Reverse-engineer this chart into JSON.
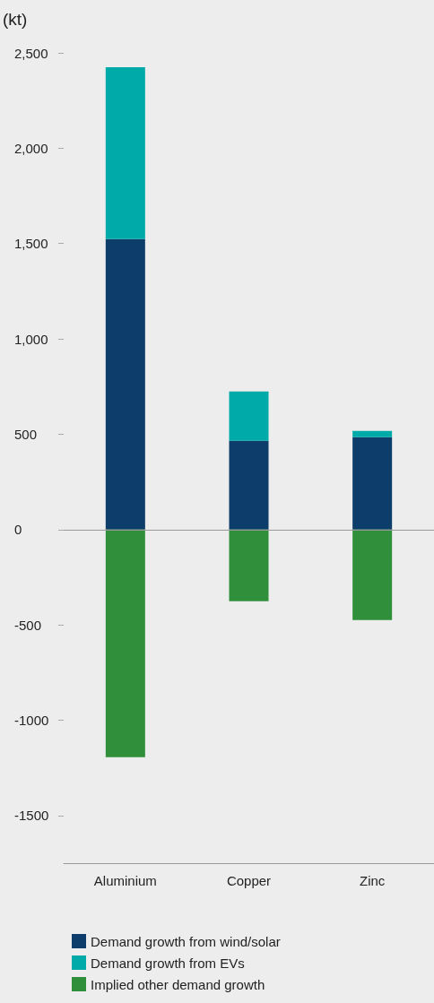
{
  "chart_data": {
    "type": "bar",
    "ylabel": "(kt)",
    "stacked": true,
    "categories": [
      "Aluminium",
      "Copper",
      "Zinc"
    ],
    "series": [
      {
        "name": "Demand growth from wind/solar",
        "color": "#0d3d6b",
        "values": [
          1523,
          465,
          484
        ]
      },
      {
        "name": "Demand growth from EVs",
        "color": "#00aaa9",
        "values": [
          902,
          259,
          33
        ]
      },
      {
        "name": "Implied other demand growth",
        "color": "#2f8f3a",
        "values": [
          -1194,
          -376,
          -475
        ]
      }
    ],
    "ylim": [
      -1750,
      2500
    ],
    "yticks": [
      {
        "value": 2500,
        "label": "2,500"
      },
      {
        "value": 2000,
        "label": "2,000"
      },
      {
        "value": 1500,
        "label": "1,500"
      },
      {
        "value": 1000,
        "label": "1,000"
      },
      500,
      0,
      -500,
      -1000,
      -1500
    ],
    "ref_lines": [
      {
        "axis": "y",
        "value": 0,
        "color": "#999999"
      }
    ],
    "grid": false,
    "legend": "bottom"
  }
}
